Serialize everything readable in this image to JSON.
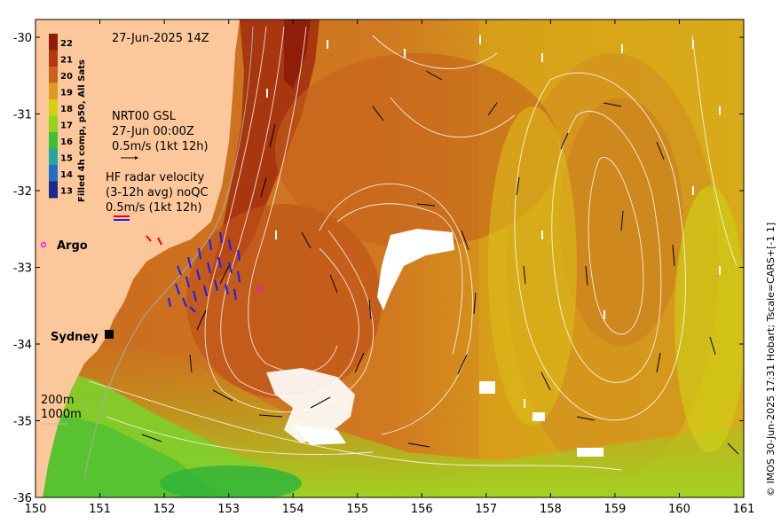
{
  "map": {
    "date_label": "27-Jun-2025 14Z",
    "colorbar_title": "Filled 4h comp, p50, All Sats",
    "colorbar_ticks": [
      "22",
      "21",
      "20",
      "19",
      "18",
      "17",
      "16",
      "15",
      "14",
      "13"
    ],
    "colorbar_colors": [
      "#8e1d0a",
      "#b23a12",
      "#c9621f",
      "#e0991f",
      "#d8cf12",
      "#97d31e",
      "#3fbf35",
      "#1ea9a0",
      "#1f6fcf",
      "#1c2a8c"
    ],
    "gsl_label_1": "NRT00 GSL",
    "gsl_label_2": "27-Jun 00:00Z",
    "gsl_label_3": "0.5m/s (1kt 12h)",
    "hf_label_1": "HF radar velocity",
    "hf_label_2": "(3-12h avg) noQC",
    "hf_label_3": "0.5m/s (1kt 12h)",
    "argo_label": "Argo",
    "city_label": "Sydney",
    "depth_label_1": "200m",
    "depth_label_2": "1000m",
    "credit": "© IMOS 30-Jun-2025 17:31 Hobart; Tscale=CARS+[-1 1]",
    "x_ticks": [
      "150",
      "151",
      "152",
      "153",
      "154",
      "155",
      "156",
      "157",
      "158",
      "159",
      "160",
      "161"
    ],
    "y_ticks": [
      "-30",
      "-31",
      "-32",
      "-33",
      "-34",
      "-35",
      "-36"
    ],
    "colors": {
      "land": "#fcc89b",
      "warm_core": "#a8360f",
      "sst_mid": "#c8671f",
      "sst_cool": "#d9a61a",
      "sst_green": "#8fd02a",
      "hf_arrows": "#1a1aff",
      "argo": "#ff00ff"
    },
    "icons": [
      "vector-arrow-icon",
      "argo-float-icon",
      "city-marker-icon"
    ]
  }
}
